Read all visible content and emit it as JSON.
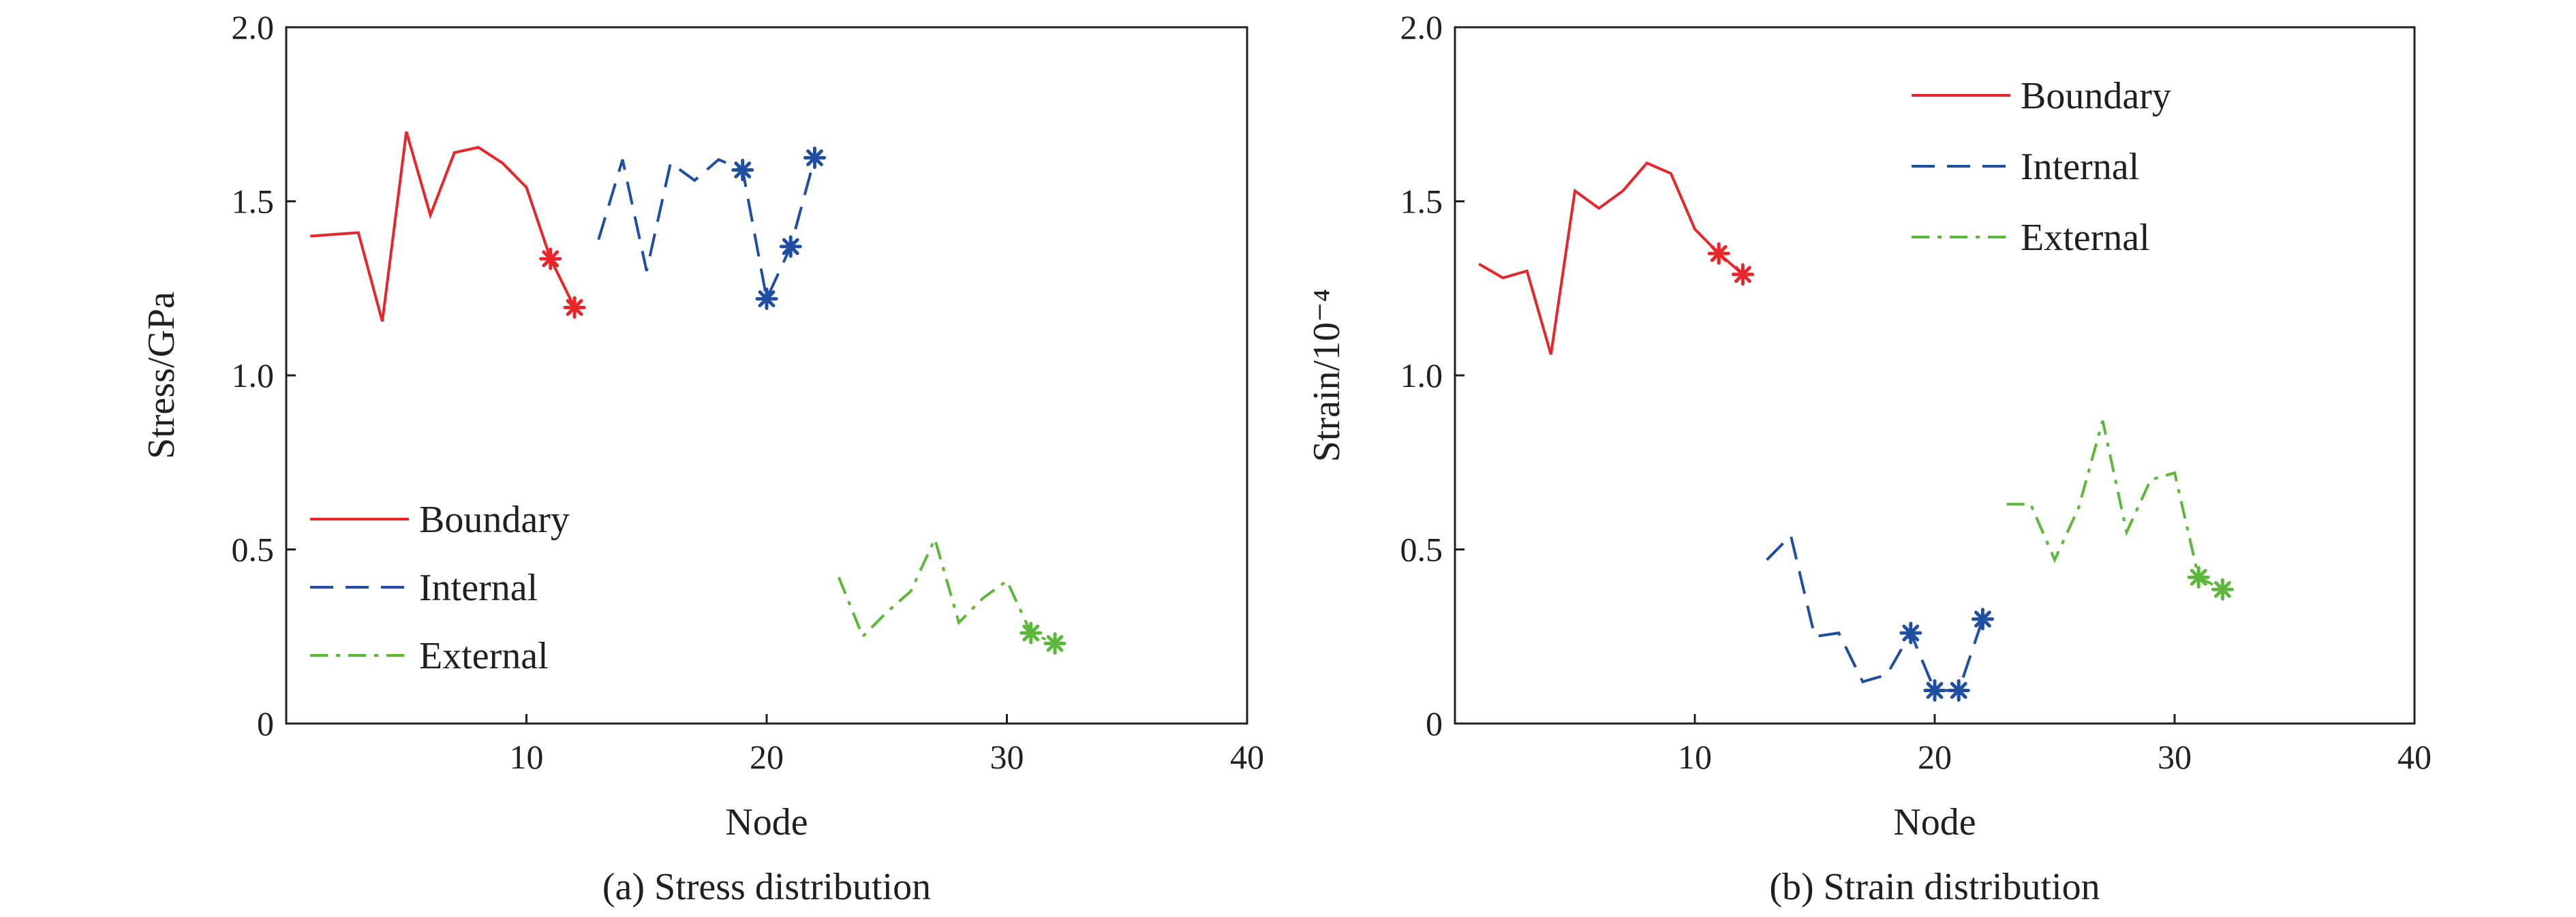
{
  "chart_data": [
    {
      "type": "line",
      "caption": "(a) Stress distribution",
      "xlabel": "Node",
      "ylabel": "Stress/GPa",
      "xlim": [
        0,
        40
      ],
      "ylim": [
        0,
        2.0
      ],
      "xticks": [
        "10",
        "20",
        "30",
        "40"
      ],
      "yticks": [
        "0",
        "0.5",
        "1.0",
        "1.5",
        "2.0"
      ],
      "legend_position": "lower-left",
      "grid": false,
      "series": [
        {
          "name": "Boundary",
          "color": "#e8262a",
          "dash": "solid",
          "x": [
            1,
            2,
            3,
            4,
            5,
            6,
            7,
            8,
            9,
            10,
            11,
            12
          ],
          "y": [
            1.4,
            1.405,
            1.41,
            1.155,
            1.7,
            1.46,
            1.64,
            1.655,
            1.61,
            1.54,
            1.335,
            1.195
          ],
          "marked": [
            11,
            12
          ]
        },
        {
          "name": "Internal",
          "color": "#1f4fa3",
          "dash": "dashed",
          "x": [
            13,
            14,
            15,
            16,
            17,
            18,
            19,
            20,
            21,
            22
          ],
          "y": [
            1.39,
            1.62,
            1.3,
            1.61,
            1.56,
            1.62,
            1.59,
            1.22,
            1.37,
            1.625
          ],
          "marked": [
            19,
            20,
            21,
            22
          ]
        },
        {
          "name": "External",
          "color": "#5cb83a",
          "dash": "dashdot",
          "x": [
            23,
            24,
            25,
            26,
            27,
            28,
            29,
            30,
            31,
            32
          ],
          "y": [
            0.42,
            0.25,
            0.32,
            0.38,
            0.53,
            0.29,
            0.36,
            0.41,
            0.26,
            0.23
          ],
          "marked": [
            31,
            32
          ]
        }
      ]
    },
    {
      "type": "line",
      "caption": "(b) Strain distribution",
      "xlabel": "Node",
      "ylabel": "Strain/10⁻⁴",
      "xlim": [
        0,
        40
      ],
      "ylim": [
        0,
        2.0
      ],
      "xticks": [
        "10",
        "20",
        "30",
        "40"
      ],
      "yticks": [
        "0",
        "0.5",
        "1.0",
        "1.5",
        "2.0"
      ],
      "legend_position": "top-center",
      "grid": false,
      "series": [
        {
          "name": "Boundary",
          "color": "#e8262a",
          "dash": "solid",
          "x": [
            1,
            2,
            3,
            4,
            5,
            6,
            7,
            8,
            9,
            10,
            11,
            12
          ],
          "y": [
            1.32,
            1.28,
            1.3,
            1.06,
            1.53,
            1.48,
            1.53,
            1.61,
            1.58,
            1.42,
            1.35,
            1.29
          ],
          "marked": [
            11,
            12
          ]
        },
        {
          "name": "Internal",
          "color": "#1f4fa3",
          "dash": "dashed",
          "x": [
            13,
            14,
            15,
            16,
            17,
            18,
            19,
            20,
            21,
            22
          ],
          "y": [
            0.47,
            0.54,
            0.25,
            0.26,
            0.12,
            0.14,
            0.26,
            0.095,
            0.095,
            0.3
          ],
          "marked": [
            19,
            20,
            21,
            22
          ]
        },
        {
          "name": "External",
          "color": "#5cb83a",
          "dash": "dashdot",
          "x": [
            23,
            24,
            25,
            26,
            27,
            28,
            29,
            30,
            31,
            32
          ],
          "y": [
            0.63,
            0.63,
            0.47,
            0.62,
            0.87,
            0.55,
            0.7,
            0.72,
            0.42,
            0.385
          ],
          "marked": [
            31,
            32
          ]
        }
      ]
    }
  ]
}
